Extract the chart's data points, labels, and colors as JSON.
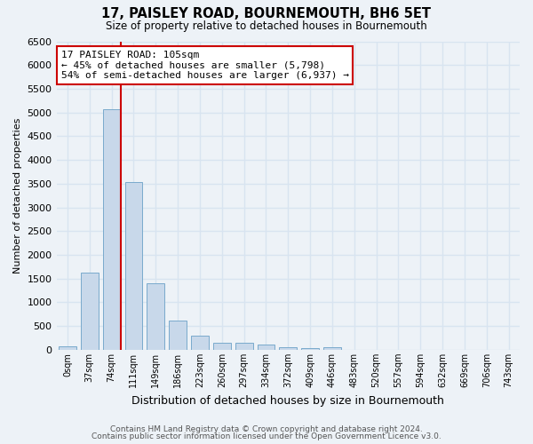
{
  "title1": "17, PAISLEY ROAD, BOURNEMOUTH, BH6 5ET",
  "title2": "Size of property relative to detached houses in Bournemouth",
  "xlabel": "Distribution of detached houses by size in Bournemouth",
  "ylabel": "Number of detached properties",
  "bin_labels": [
    "0sqm",
    "37sqm",
    "74sqm",
    "111sqm",
    "149sqm",
    "186sqm",
    "223sqm",
    "260sqm",
    "297sqm",
    "334sqm",
    "372sqm",
    "409sqm",
    "446sqm",
    "483sqm",
    "520sqm",
    "557sqm",
    "594sqm",
    "632sqm",
    "669sqm",
    "706sqm",
    "743sqm"
  ],
  "bar_values": [
    75,
    1625,
    5075,
    3525,
    1400,
    615,
    305,
    155,
    150,
    105,
    55,
    35,
    55,
    0,
    0,
    0,
    0,
    0,
    0,
    0,
    0
  ],
  "bar_color": "#c8d8ea",
  "bar_edge_color": "#7aaacc",
  "red_line_color": "#cc0000",
  "annotation_line1": "17 PAISLEY ROAD: 105sqm",
  "annotation_line2": "← 45% of detached houses are smaller (5,798)",
  "annotation_line3": "54% of semi-detached houses are larger (6,937) →",
  "annotation_box_color": "#ffffff",
  "annotation_box_edge_color": "#cc0000",
  "footer1": "Contains HM Land Registry data © Crown copyright and database right 2024.",
  "footer2": "Contains public sector information licensed under the Open Government Licence v3.0.",
  "ylim": [
    0,
    6500
  ],
  "background_color": "#edf2f7",
  "grid_color": "#d8e4f0"
}
